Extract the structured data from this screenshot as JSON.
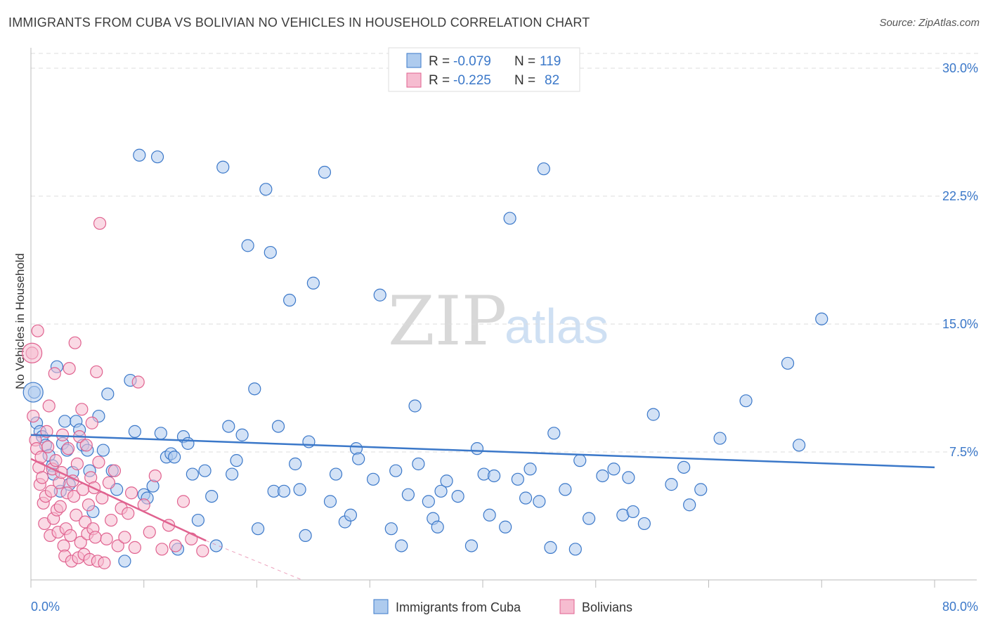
{
  "title": "IMMIGRANTS FROM CUBA VS BOLIVIAN NO VEHICLES IN HOUSEHOLD CORRELATION CHART",
  "source": "Source: ZipAtlas.com",
  "watermark": {
    "zip": "ZIP",
    "atlas": "atlas"
  },
  "colors": {
    "blue": "#3b78c9",
    "blue_fill": "#aecbee",
    "pink": "#e0628f",
    "pink_fill": "#f6bcd0",
    "grid": "#dddddd"
  },
  "stats": {
    "row1": {
      "r_label": "R =",
      "r": "-0.079",
      "n_label": "N =",
      "n": "119"
    },
    "row2": {
      "r_label": "R =",
      "r": "-0.225",
      "n_label": "N =",
      "n": "82"
    }
  },
  "chart_data": {
    "type": "scatter",
    "title": "IMMIGRANTS FROM CUBA VS BOLIVIAN NO VEHICLES IN HOUSEHOLD CORRELATION CHART",
    "xlabel": "",
    "ylabel": "No Vehicles in Household",
    "xlim": [
      0,
      80
    ],
    "ylim": [
      0,
      30
    ],
    "x_tick_labels": [
      "0.0%",
      "80.0%"
    ],
    "y_ticks": [
      7.5,
      15.0,
      22.5,
      30.0
    ],
    "y_tick_labels": [
      "7.5%",
      "15.0%",
      "22.5%",
      "30.0%"
    ],
    "legend": [
      "Immigrants from Cuba",
      "Bolivians"
    ],
    "series": [
      {
        "name": "Immigrants from Cuba",
        "color": "blue",
        "trend": {
          "x": [
            0,
            80
          ],
          "y": [
            8.5,
            6.6
          ]
        },
        "points": [
          [
            0.3,
            11.0
          ],
          [
            0.5,
            9.2
          ],
          [
            0.8,
            8.7
          ],
          [
            1.0,
            8.4
          ],
          [
            1.3,
            7.9
          ],
          [
            1.6,
            7.3
          ],
          [
            1.9,
            6.7
          ],
          [
            2.0,
            6.2
          ],
          [
            2.3,
            12.5
          ],
          [
            2.6,
            5.2
          ],
          [
            2.8,
            8.0
          ],
          [
            3.0,
            9.3
          ],
          [
            3.2,
            7.6
          ],
          [
            3.4,
            5.6
          ],
          [
            3.7,
            6.3
          ],
          [
            4.0,
            9.3
          ],
          [
            4.3,
            8.8
          ],
          [
            4.6,
            7.9
          ],
          [
            5.0,
            7.6
          ],
          [
            5.2,
            6.4
          ],
          [
            5.5,
            4.0
          ],
          [
            6.0,
            9.6
          ],
          [
            6.4,
            7.6
          ],
          [
            6.8,
            10.9
          ],
          [
            7.2,
            6.4
          ],
          [
            7.6,
            5.3
          ],
          [
            8.3,
            1.1
          ],
          [
            8.8,
            11.7
          ],
          [
            9.2,
            8.7
          ],
          [
            9.6,
            24.9
          ],
          [
            10.0,
            5.0
          ],
          [
            10.3,
            4.8
          ],
          [
            10.8,
            5.5
          ],
          [
            11.2,
            24.8
          ],
          [
            11.5,
            8.6
          ],
          [
            12.0,
            7.2
          ],
          [
            12.4,
            7.4
          ],
          [
            12.7,
            7.2
          ],
          [
            13.0,
            1.8
          ],
          [
            13.5,
            8.4
          ],
          [
            13.9,
            8.0
          ],
          [
            14.3,
            6.2
          ],
          [
            14.8,
            3.5
          ],
          [
            15.4,
            6.4
          ],
          [
            16.0,
            4.9
          ],
          [
            16.4,
            2.0
          ],
          [
            17.0,
            24.2
          ],
          [
            17.5,
            9.0
          ],
          [
            17.8,
            6.2
          ],
          [
            18.2,
            7.0
          ],
          [
            18.7,
            8.5
          ],
          [
            19.2,
            19.6
          ],
          [
            19.8,
            11.2
          ],
          [
            20.1,
            3.0
          ],
          [
            20.8,
            22.9
          ],
          [
            21.2,
            19.2
          ],
          [
            21.5,
            5.2
          ],
          [
            21.9,
            9.0
          ],
          [
            22.4,
            5.2
          ],
          [
            22.9,
            16.4
          ],
          [
            23.4,
            6.8
          ],
          [
            23.8,
            5.3
          ],
          [
            24.3,
            2.6
          ],
          [
            24.6,
            8.1
          ],
          [
            25.0,
            17.4
          ],
          [
            26.0,
            23.9
          ],
          [
            26.5,
            4.6
          ],
          [
            27.0,
            6.2
          ],
          [
            27.8,
            3.4
          ],
          [
            28.3,
            3.8
          ],
          [
            28.8,
            7.7
          ],
          [
            29.0,
            7.1
          ],
          [
            30.3,
            5.9
          ],
          [
            30.9,
            16.7
          ],
          [
            31.9,
            3.0
          ],
          [
            32.3,
            6.4
          ],
          [
            32.8,
            2.0
          ],
          [
            33.4,
            5.0
          ],
          [
            34.0,
            10.2
          ],
          [
            34.3,
            6.8
          ],
          [
            35.2,
            4.6
          ],
          [
            35.6,
            3.6
          ],
          [
            36.0,
            3.1
          ],
          [
            36.3,
            5.2
          ],
          [
            36.8,
            5.8
          ],
          [
            37.8,
            4.9
          ],
          [
            39.0,
            2.0
          ],
          [
            39.5,
            7.7
          ],
          [
            40.1,
            6.2
          ],
          [
            40.6,
            3.8
          ],
          [
            41.0,
            6.1
          ],
          [
            42.0,
            3.1
          ],
          [
            42.4,
            21.2
          ],
          [
            43.1,
            5.9
          ],
          [
            43.8,
            4.8
          ],
          [
            44.2,
            6.5
          ],
          [
            45.0,
            4.6
          ],
          [
            45.4,
            24.1
          ],
          [
            46.0,
            1.9
          ],
          [
            46.3,
            8.6
          ],
          [
            47.3,
            5.3
          ],
          [
            48.2,
            1.8
          ],
          [
            48.6,
            7.0
          ],
          [
            49.4,
            3.6
          ],
          [
            50.6,
            6.1
          ],
          [
            51.6,
            6.5
          ],
          [
            52.4,
            3.8
          ],
          [
            52.9,
            6.0
          ],
          [
            53.3,
            4.0
          ],
          [
            54.3,
            3.3
          ],
          [
            55.1,
            9.7
          ],
          [
            56.7,
            5.6
          ],
          [
            57.8,
            6.6
          ],
          [
            58.3,
            4.4
          ],
          [
            59.3,
            5.3
          ],
          [
            61.0,
            8.3
          ],
          [
            63.3,
            10.5
          ],
          [
            67.0,
            12.7
          ],
          [
            68.0,
            7.9
          ],
          [
            70.0,
            15.3
          ]
        ]
      },
      {
        "name": "Bolivians",
        "color": "pink",
        "trend": {
          "x": [
            0,
            15.5
          ],
          "y": [
            7.1,
            2.3
          ]
        },
        "trend_dashed": {
          "x": [
            15.5,
            24
          ],
          "y": [
            2.3,
            0.0
          ]
        },
        "points": [
          [
            0.1,
            13.3
          ],
          [
            0.2,
            9.6
          ],
          [
            0.4,
            8.2
          ],
          [
            0.5,
            7.7
          ],
          [
            0.6,
            14.6
          ],
          [
            0.7,
            6.6
          ],
          [
            0.8,
            5.6
          ],
          [
            0.9,
            7.2
          ],
          [
            1.0,
            6.0
          ],
          [
            1.1,
            4.5
          ],
          [
            1.2,
            3.3
          ],
          [
            1.3,
            4.9
          ],
          [
            1.4,
            8.7
          ],
          [
            1.5,
            7.8
          ],
          [
            1.6,
            10.2
          ],
          [
            1.7,
            2.6
          ],
          [
            1.8,
            5.2
          ],
          [
            1.9,
            6.5
          ],
          [
            2.0,
            3.6
          ],
          [
            2.1,
            12.1
          ],
          [
            2.2,
            7.0
          ],
          [
            2.3,
            4.1
          ],
          [
            2.4,
            2.8
          ],
          [
            2.5,
            5.7
          ],
          [
            2.6,
            4.3
          ],
          [
            2.7,
            6.3
          ],
          [
            2.8,
            8.5
          ],
          [
            2.9,
            2.0
          ],
          [
            3.0,
            1.4
          ],
          [
            3.1,
            3.0
          ],
          [
            3.2,
            5.1
          ],
          [
            3.3,
            7.7
          ],
          [
            3.4,
            12.4
          ],
          [
            3.5,
            2.6
          ],
          [
            3.6,
            1.1
          ],
          [
            3.7,
            5.8
          ],
          [
            3.8,
            4.9
          ],
          [
            3.9,
            13.9
          ],
          [
            4.0,
            3.8
          ],
          [
            4.1,
            6.8
          ],
          [
            4.2,
            1.3
          ],
          [
            4.3,
            8.4
          ],
          [
            4.4,
            2.2
          ],
          [
            4.5,
            10.0
          ],
          [
            4.6,
            5.3
          ],
          [
            4.7,
            1.5
          ],
          [
            4.8,
            3.4
          ],
          [
            4.9,
            7.9
          ],
          [
            5.0,
            2.7
          ],
          [
            5.1,
            4.4
          ],
          [
            5.2,
            1.2
          ],
          [
            5.3,
            6.0
          ],
          [
            5.4,
            9.2
          ],
          [
            5.5,
            3.0
          ],
          [
            5.6,
            5.4
          ],
          [
            5.7,
            2.5
          ],
          [
            5.8,
            12.2
          ],
          [
            5.9,
            1.1
          ],
          [
            6.0,
            6.9
          ],
          [
            6.1,
            20.9
          ],
          [
            6.3,
            4.8
          ],
          [
            6.5,
            1.0
          ],
          [
            6.7,
            2.4
          ],
          [
            6.9,
            5.7
          ],
          [
            7.1,
            3.5
          ],
          [
            7.4,
            6.4
          ],
          [
            7.7,
            2.0
          ],
          [
            8.0,
            4.2
          ],
          [
            8.3,
            2.5
          ],
          [
            8.6,
            3.9
          ],
          [
            8.9,
            5.1
          ],
          [
            9.2,
            1.9
          ],
          [
            9.5,
            11.6
          ],
          [
            10.0,
            4.4
          ],
          [
            10.5,
            2.8
          ],
          [
            11.0,
            6.1
          ],
          [
            11.6,
            1.8
          ],
          [
            12.2,
            3.2
          ],
          [
            12.8,
            2.0
          ],
          [
            13.5,
            4.6
          ],
          [
            14.2,
            2.4
          ],
          [
            15.2,
            1.7
          ]
        ]
      }
    ]
  },
  "legend_bottom": {
    "item1": "Immigrants from Cuba",
    "item2": "Bolivians"
  }
}
